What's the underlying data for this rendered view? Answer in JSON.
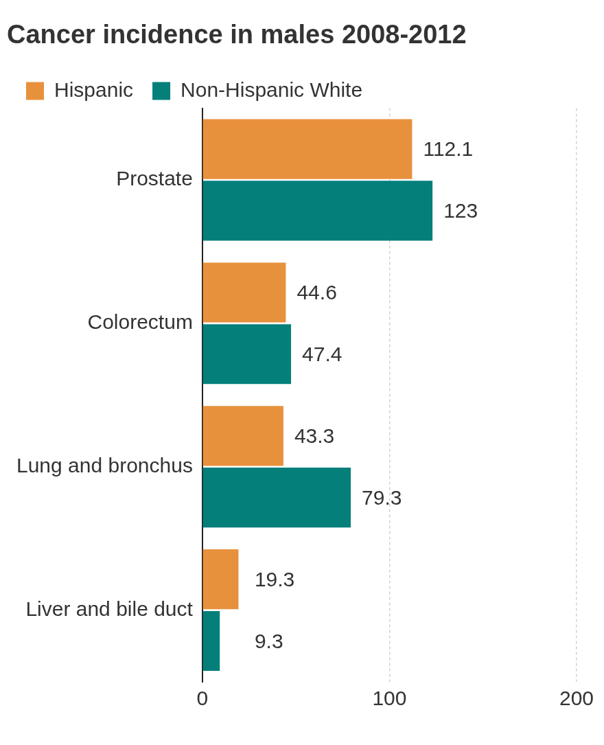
{
  "chart_data": {
    "type": "bar",
    "orientation": "horizontal",
    "title": "Cancer incidence in males 2008-2012",
    "categories": [
      "Prostate",
      "Colorectum",
      "Lung and bronchus",
      "Liver and bile duct"
    ],
    "series": [
      {
        "name": "Hispanic",
        "color": "#e8913d",
        "values": [
          112.1,
          44.6,
          43.3,
          19.3
        ]
      },
      {
        "name": "Non-Hispanic White",
        "color": "#047f7a",
        "values": [
          123,
          47.4,
          79.3,
          9.3
        ]
      }
    ],
    "xlim": [
      0,
      200
    ],
    "xticks": [
      0,
      100,
      200
    ],
    "grid": true,
    "legend": "top-left",
    "data_labels": true
  }
}
